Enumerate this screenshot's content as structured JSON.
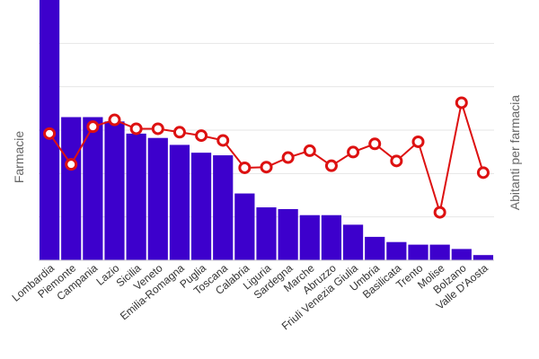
{
  "chart_data": {
    "type": "bar",
    "title": "",
    "categories": [
      "Lombardia",
      "Piemonte",
      "Campania",
      "Lazio",
      "Sicilia",
      "Veneto",
      "Emilia-Romagna",
      "Puglia",
      "Toscana",
      "Calabria",
      "Liguria",
      "Sardegna",
      "Marche",
      "Abruzzo",
      "Friuli Venezia Giulia",
      "Umbria",
      "Basilicata",
      "Trento",
      "Molise",
      "Bolzano",
      "Valle D'Aosta"
    ],
    "series": [
      {
        "name": "Farmacie",
        "kind": "bar",
        "axis": "left",
        "color": "#3d00cc",
        "values": [
          3000,
          1650,
          1650,
          1600,
          1460,
          1410,
          1330,
          1240,
          1210,
          770,
          610,
          590,
          520,
          520,
          410,
          270,
          210,
          180,
          180,
          130,
          60
        ]
      },
      {
        "name": "Abitanti per farmacia",
        "kind": "line",
        "axis": "right",
        "color": "#dd1111",
        "values": [
          3450,
          3000,
          3550,
          3650,
          3520,
          3520,
          3470,
          3420,
          3350,
          2950,
          2960,
          3100,
          3200,
          2980,
          3180,
          3300,
          3050,
          3330,
          2300,
          3900,
          2880
        ]
      }
    ],
    "ylabel_left": "Farmacie",
    "ylabel_right": "Abitanti per farmacia",
    "ylim_left": [
      0,
      3000
    ],
    "ylim_right": [
      1600,
      5400
    ],
    "grid": true
  }
}
